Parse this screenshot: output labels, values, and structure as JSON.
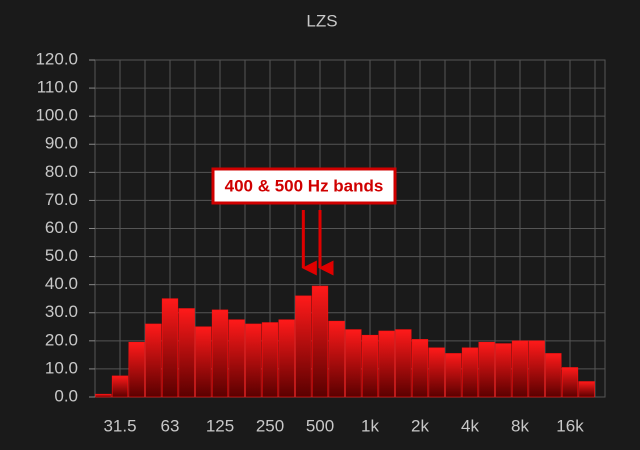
{
  "chart_data": {
    "type": "bar",
    "title": "LZS",
    "categories": [
      null,
      "31.5",
      null,
      null,
      "63",
      null,
      null,
      "125",
      null,
      null,
      "250",
      null,
      null,
      "500",
      null,
      null,
      "1k",
      null,
      null,
      "2k",
      null,
      null,
      "4k",
      null,
      null,
      "8k",
      null,
      null,
      "16k",
      null
    ],
    "values": [
      1,
      7.5,
      19.5,
      26,
      35,
      31.5,
      25,
      31,
      27.5,
      26,
      26.5,
      27.5,
      36,
      39.5,
      27,
      24,
      22,
      23.5,
      24,
      20.5,
      17.5,
      15.5,
      17.5,
      19.5,
      19,
      20,
      20,
      15.5,
      10.5,
      5.5
    ],
    "color": "#ff1010",
    "ylim": [
      0,
      120
    ],
    "yticks": [
      {
        "value": 0,
        "label": "0.0"
      },
      {
        "value": 10,
        "label": "10.0"
      },
      {
        "value": 20,
        "label": "20.0"
      },
      {
        "value": 30,
        "label": "30.0"
      },
      {
        "value": 40,
        "label": "40.0"
      },
      {
        "value": 50,
        "label": "50.0"
      },
      {
        "value": 60,
        "label": "60.0"
      },
      {
        "value": 70,
        "label": "70.0"
      },
      {
        "value": 80,
        "label": "80.0"
      },
      {
        "value": 90,
        "label": "90.0"
      },
      {
        "value": 100,
        "label": "100.0"
      },
      {
        "value": 110,
        "label": "110.0"
      },
      {
        "value": 120,
        "label": "120.0"
      }
    ],
    "grid": true,
    "annotation": "400 & 500 Hz bands"
  }
}
